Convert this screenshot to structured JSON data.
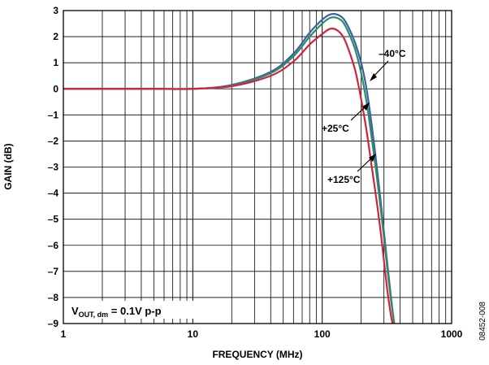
{
  "chart_data": {
    "type": "line",
    "title": "",
    "xlabel": "FREQUENCY (MHz)",
    "ylabel": "GAIN (dB)",
    "x_scale": "log",
    "xlim": [
      1,
      1000
    ],
    "ylim": [
      -9,
      3
    ],
    "x_ticks": [
      {
        "value": 1,
        "label": "1"
      },
      {
        "value": 10,
        "label": "10"
      },
      {
        "value": 100,
        "label": "100"
      },
      {
        "value": 1000,
        "label": "1000"
      }
    ],
    "y_ticks": [
      {
        "value": 3,
        "label": "3"
      },
      {
        "value": 2,
        "label": "2"
      },
      {
        "value": 1,
        "label": "1"
      },
      {
        "value": 0,
        "label": "0"
      },
      {
        "value": -1,
        "label": "–1"
      },
      {
        "value": -2,
        "label": "–2"
      },
      {
        "value": -3,
        "label": "–3"
      },
      {
        "value": -4,
        "label": "–4"
      },
      {
        "value": -5,
        "label": "–5"
      },
      {
        "value": -6,
        "label": "–6"
      },
      {
        "value": -7,
        "label": "–7"
      },
      {
        "value": -8,
        "label": "–8"
      },
      {
        "value": -9,
        "label": "–9"
      }
    ],
    "grid": true,
    "series": [
      {
        "name": "–40°C",
        "color": "#3b5fa8",
        "x": [
          1,
          2,
          5,
          10,
          20,
          40,
          60,
          80,
          100,
          115,
          130,
          145,
          160,
          180,
          200,
          220,
          240,
          260,
          280,
          300,
          320,
          340,
          360
        ],
        "y": [
          0,
          0,
          0,
          0,
          0.15,
          0.65,
          1.35,
          2.15,
          2.65,
          2.85,
          2.85,
          2.7,
          2.35,
          1.75,
          1.0,
          0.0,
          -1.3,
          -2.7,
          -4.1,
          -5.5,
          -6.8,
          -8.0,
          -9.0
        ]
      },
      {
        "name": "+25°C",
        "color": "#2e8b64",
        "x": [
          1,
          2,
          5,
          10,
          20,
          40,
          60,
          80,
          100,
          115,
          130,
          145,
          160,
          180,
          200,
          220,
          240,
          260,
          280,
          300,
          320,
          340,
          360
        ],
        "y": [
          0,
          0,
          0,
          0,
          0.13,
          0.6,
          1.25,
          2.0,
          2.5,
          2.72,
          2.72,
          2.55,
          2.15,
          1.5,
          0.6,
          -0.5,
          -1.8,
          -3.1,
          -4.4,
          -5.7,
          -7.0,
          -8.1,
          -9.0
        ]
      },
      {
        "name": "+125°C",
        "color": "#d4213d",
        "x": [
          1,
          2,
          5,
          10,
          20,
          40,
          60,
          80,
          100,
          115,
          130,
          145,
          160,
          180,
          200,
          220,
          240,
          260,
          280,
          300,
          320,
          340,
          350
        ],
        "y": [
          0,
          0,
          0,
          0,
          0.1,
          0.5,
          1.05,
          1.7,
          2.1,
          2.3,
          2.25,
          2.0,
          1.5,
          0.7,
          -0.4,
          -1.6,
          -2.9,
          -4.1,
          -5.3,
          -6.6,
          -7.8,
          -8.7,
          -9.0
        ]
      }
    ],
    "annotations": [
      {
        "text": "–40°C"
      },
      {
        "text": "+25°C"
      },
      {
        "text": "+125°C"
      },
      {
        "text_main": "V",
        "text_sub": "OUT, dm",
        "text_rest": " = 0.1V p-p"
      }
    ]
  },
  "figure_id": "08452-008"
}
